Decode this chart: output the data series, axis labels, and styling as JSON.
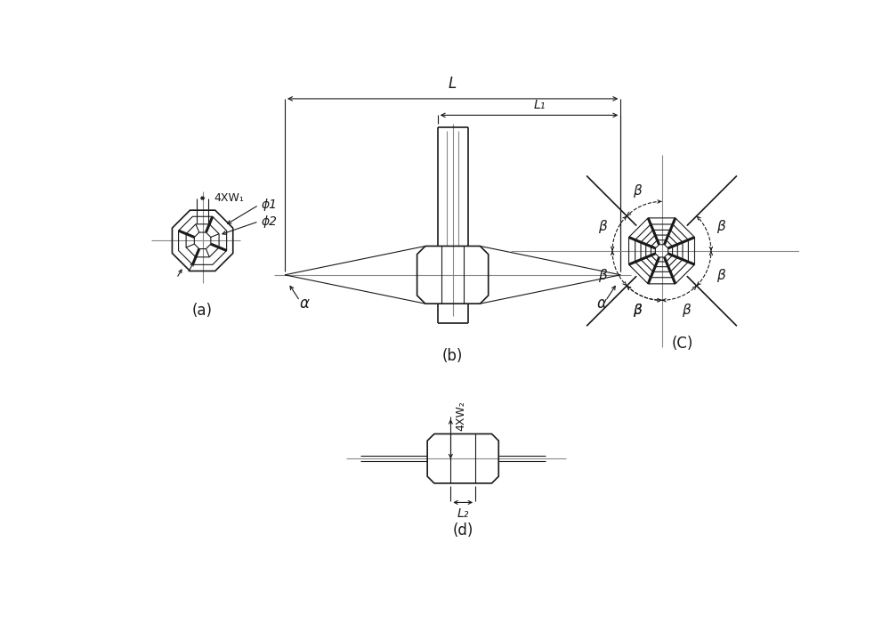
{
  "bg_color": "#ffffff",
  "line_color": "#1a1a1a",
  "gray_color": "#888888",
  "label_a": "(a)",
  "label_b": "(b)",
  "label_c": "(C)",
  "label_d": "(d)",
  "text_4XW1": "4XW₁",
  "text_phi1": "ϕ1",
  "text_phi2": "ϕ2",
  "text_L": "L",
  "text_L1": "L₁",
  "text_alpha": "α",
  "text_beta": "β",
  "text_4XW2": "4XW₂",
  "text_L2": "L₂",
  "fig_width": 10.0,
  "fig_height": 7.19,
  "dpi": 100
}
